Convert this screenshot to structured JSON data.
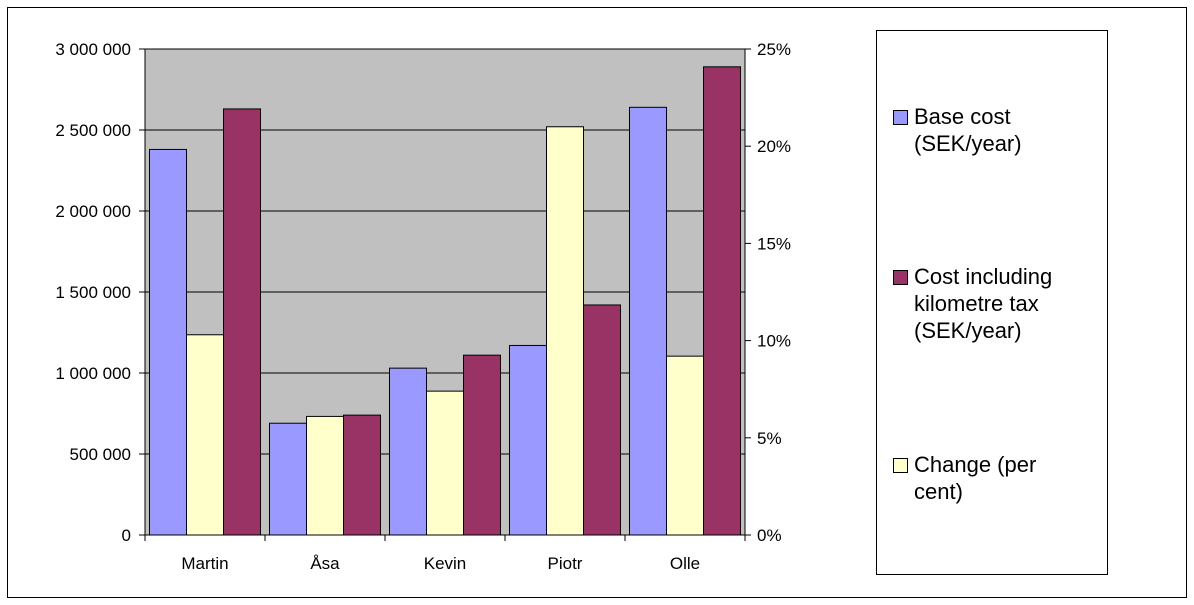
{
  "chart_data": {
    "type": "bar",
    "categories": [
      "Martin",
      "Åsa",
      "Kevin",
      "Piotr",
      "Olle"
    ],
    "series": [
      {
        "name": "Base cost\n(SEK/year)",
        "axis": "left",
        "color": "#9999ff",
        "values": [
          2380000,
          690000,
          1030000,
          1170000,
          2640000
        ]
      },
      {
        "name": "Change (per\ncent)",
        "axis": "right",
        "color": "#ffffcc",
        "values": [
          0.103,
          0.061,
          0.074,
          0.21,
          0.092
        ]
      },
      {
        "name": "Cost including\nkilometre tax\n(SEK/year)",
        "axis": "left",
        "color": "#993366",
        "values": [
          2630000,
          740000,
          1110000,
          1420000,
          2890000
        ]
      }
    ],
    "legend_order": [
      0,
      2,
      1
    ],
    "left_axis": {
      "ylim": [
        0,
        3000000
      ],
      "ticks": [
        0,
        500000,
        1000000,
        1500000,
        2000000,
        2500000,
        3000000
      ],
      "tick_labels": [
        "0",
        "500 000",
        "1 000 000",
        "1 500 000",
        "2 000 000",
        "2 500 000",
        "3 000 000"
      ]
    },
    "right_axis": {
      "ylim": [
        0,
        0.25
      ],
      "ticks": [
        0,
        0.05,
        0.1,
        0.15,
        0.2,
        0.25
      ],
      "tick_labels": [
        "0%",
        "5%",
        "10%",
        "15%",
        "20%",
        "25%"
      ]
    },
    "plot_background": "#c0c0c0",
    "grid": true,
    "legend_position": "right"
  }
}
